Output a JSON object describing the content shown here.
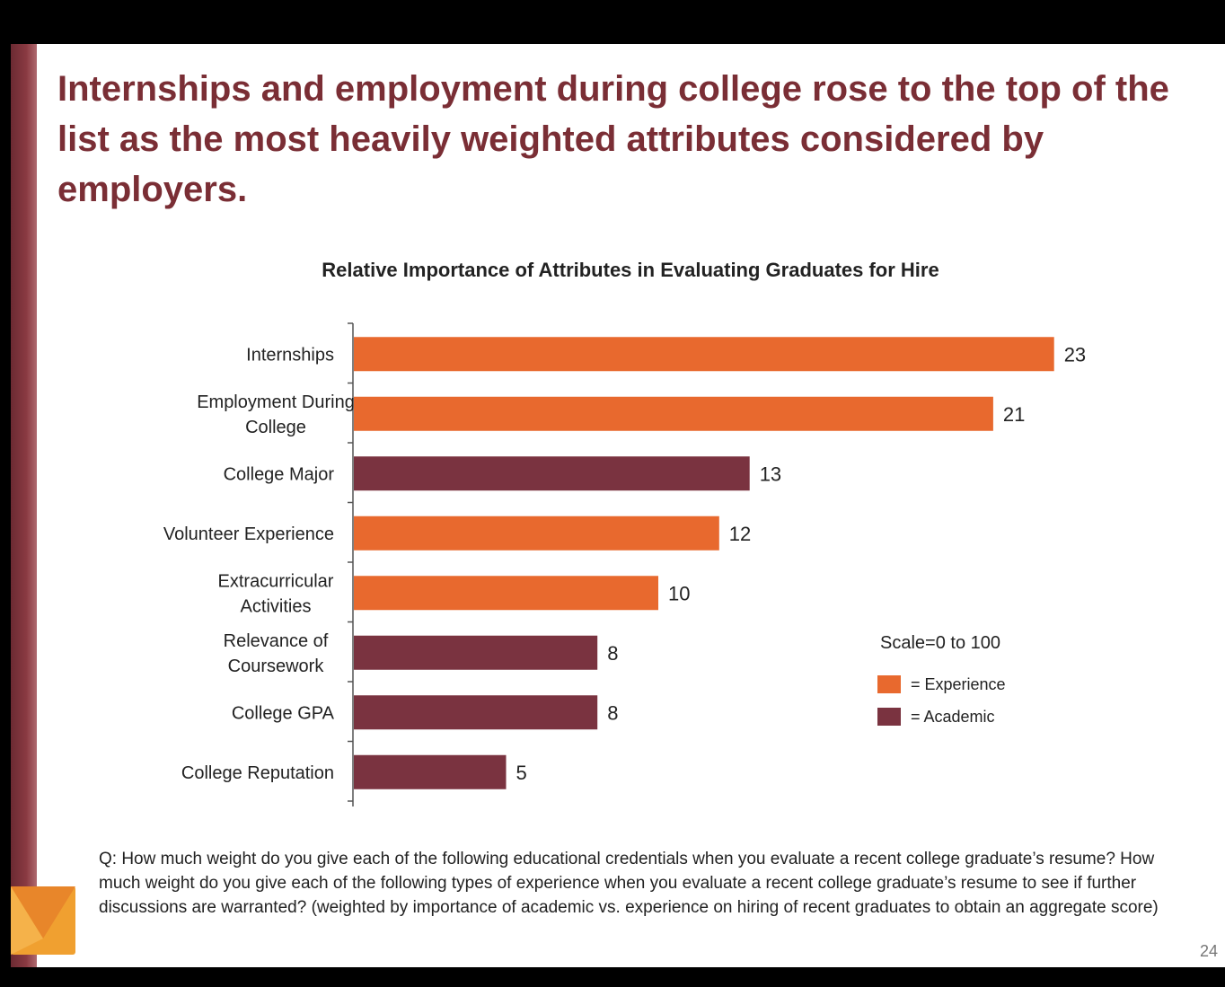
{
  "slide": {
    "headline": "Internships and employment during college rose to the top of the list as the most heavily weighted attributes considered by employers.",
    "question": "Q: How much weight do you give each of the following educational credentials when you evaluate a recent college graduate’s resume? How much weight do you give each of the following types of experience when you evaluate a recent college graduate’s resume to see if further discussions are warranted? (weighted by importance of academic vs. experience on hiring of recent graduates to obtain an aggregate score)",
    "page_number": "24",
    "colors": {
      "brand": "#7a2e35",
      "accent": "#f0a030"
    }
  },
  "chart_data": {
    "type": "bar",
    "orientation": "horizontal",
    "title": "Relative Importance of Attributes in Evaluating Graduates for Hire",
    "categories": [
      [
        "Internships"
      ],
      [
        "Employment During",
        "College"
      ],
      [
        "College Major"
      ],
      [
        "Volunteer Experience"
      ],
      [
        "Extracurricular",
        "Activities"
      ],
      [
        "Relevance of",
        "Coursework"
      ],
      [
        "College GPA"
      ],
      [
        "College Reputation"
      ]
    ],
    "values": [
      23,
      21,
      13,
      12,
      10,
      8,
      8,
      5
    ],
    "groups": [
      "Experience",
      "Experience",
      "Academic",
      "Experience",
      "Experience",
      "Academic",
      "Academic",
      "Academic"
    ],
    "xlim": [
      0,
      23
    ],
    "legend": {
      "note": "Scale=0 to 100",
      "items": [
        {
          "label": "= Experience",
          "color": "#e8692e"
        },
        {
          "label": "= Academic",
          "color": "#7a3340"
        }
      ],
      "placement": "right"
    },
    "colors": {
      "Experience": "#e8692e",
      "Academic": "#7a3340"
    }
  }
}
